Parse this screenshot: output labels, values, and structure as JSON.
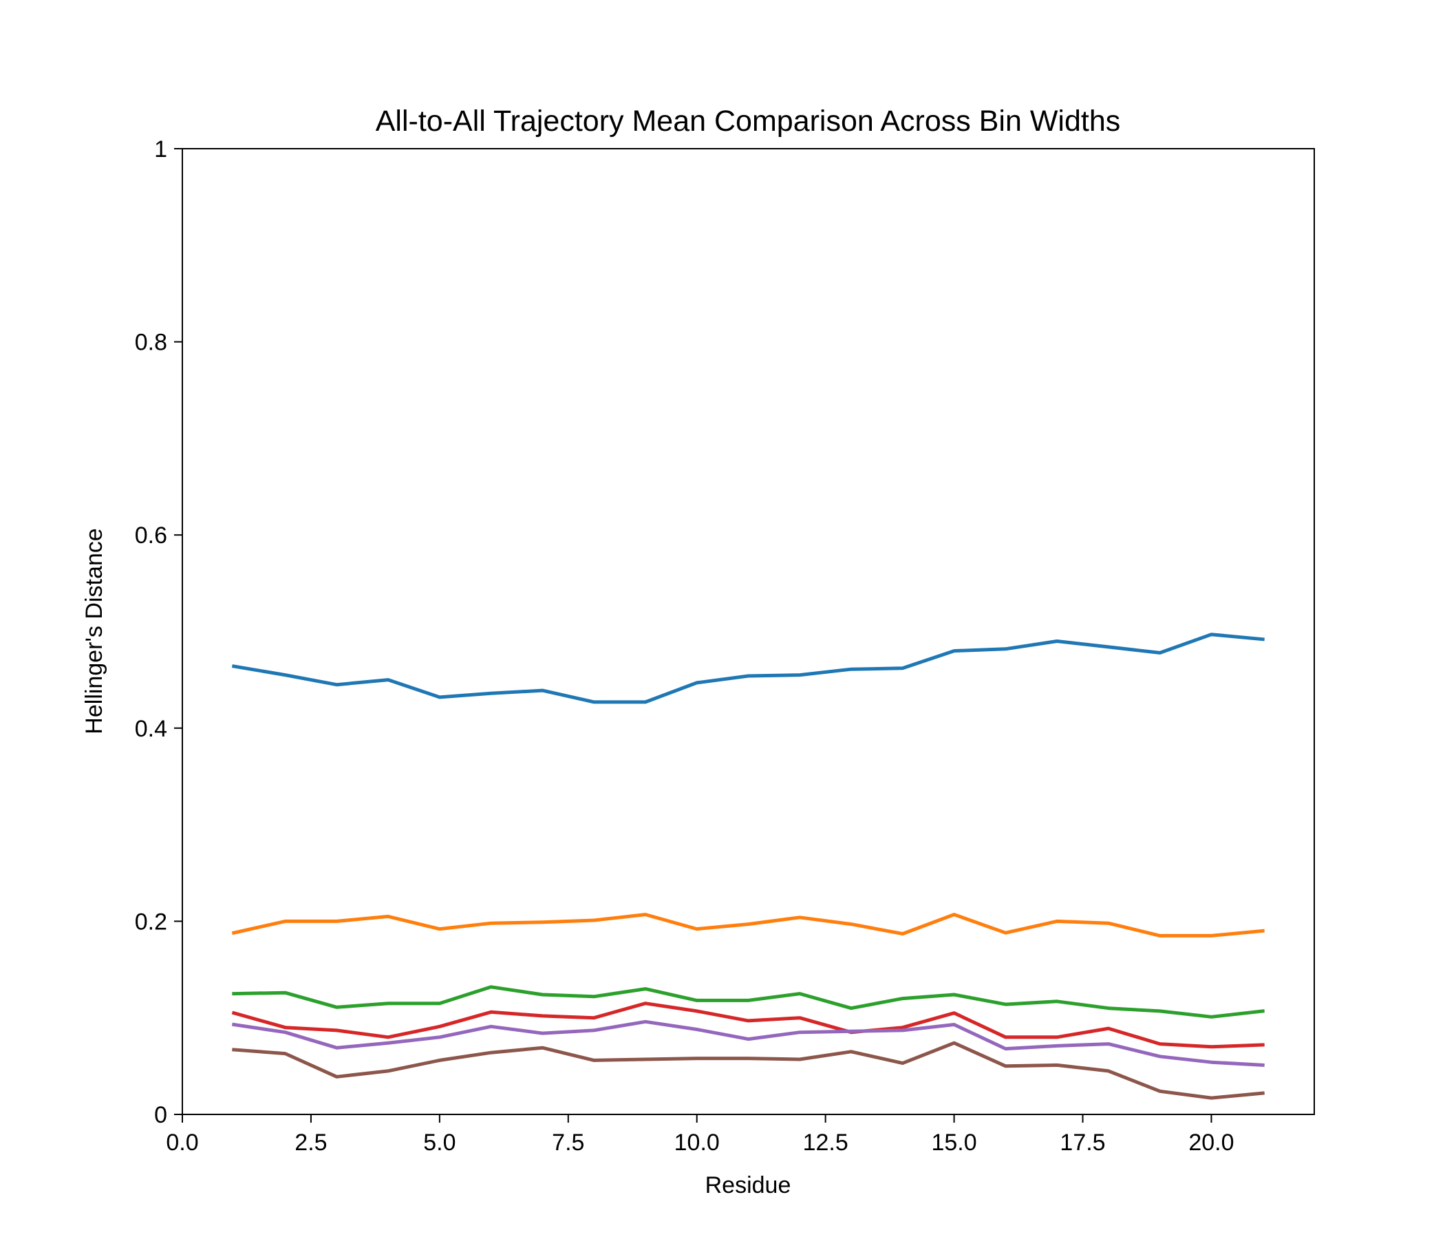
{
  "chart_data": {
    "type": "line",
    "title": "All-to-All Trajectory Mean Comparison Across Bin Widths",
    "xlabel": "Residue",
    "ylabel": "Hellinger's Distance",
    "xlim": [
      0,
      22
    ],
    "ylim": [
      0,
      1
    ],
    "xticks": [
      0,
      2.5,
      5,
      7.5,
      10,
      12.5,
      15,
      17.5,
      20
    ],
    "xtick_labels": [
      "0.0",
      "2.5",
      "5.0",
      "7.5",
      "10.0",
      "12.5",
      "15.0",
      "17.5",
      "20.0"
    ],
    "yticks": [
      0,
      0.2,
      0.4,
      0.6,
      0.8,
      1
    ],
    "ytick_labels": [
      "0",
      "0.2",
      "0.4",
      "0.6",
      "0.8",
      "1"
    ],
    "grid": false,
    "x": [
      1,
      2,
      3,
      4,
      5,
      6,
      7,
      8,
      9,
      10,
      11,
      12,
      13,
      14,
      15,
      16,
      17,
      18,
      19,
      20,
      21
    ],
    "series": [
      {
        "color": "#1f77b4",
        "values": [
          0.464,
          0.455,
          0.445,
          0.45,
          0.432,
          0.436,
          0.439,
          0.427,
          0.427,
          0.447,
          0.454,
          0.455,
          0.461,
          0.462,
          0.48,
          0.482,
          0.49,
          0.484,
          0.478,
          0.497,
          0.492
        ]
      },
      {
        "color": "#ff7f0e",
        "values": [
          0.188,
          0.2,
          0.2,
          0.205,
          0.192,
          0.198,
          0.199,
          0.201,
          0.207,
          0.192,
          0.197,
          0.204,
          0.197,
          0.187,
          0.207,
          0.188,
          0.2,
          0.198,
          0.185,
          0.185,
          0.19
        ]
      },
      {
        "color": "#2ca02c",
        "values": [
          0.125,
          0.126,
          0.111,
          0.115,
          0.115,
          0.132,
          0.124,
          0.122,
          0.13,
          0.118,
          0.118,
          0.125,
          0.11,
          0.12,
          0.124,
          0.114,
          0.117,
          0.11,
          0.107,
          0.101,
          0.107
        ]
      },
      {
        "color": "#d62728",
        "values": [
          0.105,
          0.09,
          0.087,
          0.08,
          0.091,
          0.106,
          0.102,
          0.1,
          0.115,
          0.107,
          0.097,
          0.1,
          0.085,
          0.09,
          0.105,
          0.08,
          0.08,
          0.089,
          0.073,
          0.07,
          0.072
        ]
      },
      {
        "color": "#9467bd",
        "values": [
          0.093,
          0.085,
          0.069,
          0.074,
          0.08,
          0.091,
          0.084,
          0.087,
          0.096,
          0.088,
          0.078,
          0.085,
          0.086,
          0.087,
          0.093,
          0.068,
          0.071,
          0.073,
          0.06,
          0.054,
          0.051
        ]
      },
      {
        "color": "#8c564b",
        "values": [
          0.067,
          0.063,
          0.039,
          0.045,
          0.056,
          0.064,
          0.069,
          0.056,
          0.057,
          0.058,
          0.058,
          0.057,
          0.065,
          0.053,
          0.074,
          0.05,
          0.051,
          0.045,
          0.024,
          0.017,
          0.022
        ]
      }
    ]
  }
}
